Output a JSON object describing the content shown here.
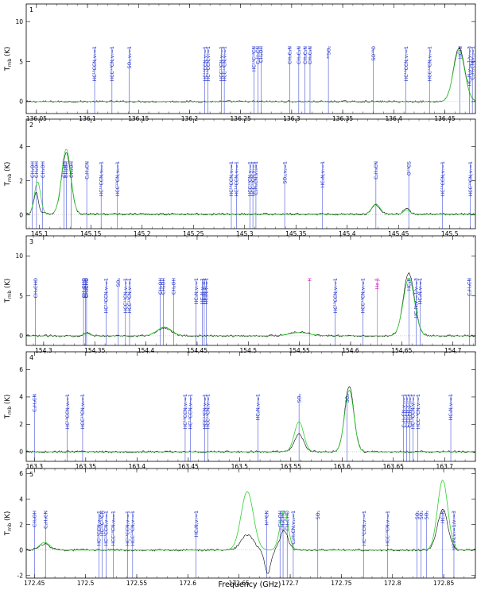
{
  "figure": {
    "xlabel": "Frequency (GHz)",
    "ylabel_text": "T",
    "ylabel_sub": "mb",
    "ylabel_unit": "(K)",
    "colors": {
      "observed": "#000000",
      "model": "#2fd12f",
      "line_blue": "#1f2fd0",
      "line_magenta": "#d020c8",
      "frame": "#000000"
    }
  },
  "chart_data": [
    {
      "type": "line",
      "panel": "1",
      "xlim": [
        136.04,
        136.48
      ],
      "ylim": [
        -1.5,
        12.2
      ],
      "xticks": [
        "136.05",
        "136.1",
        "136.15",
        "136.2",
        "136.25",
        "136.3",
        "136.35",
        "136.4",
        "136.45"
      ],
      "xtick_values": [
        136.05,
        136.1,
        136.15,
        136.2,
        136.25,
        136.3,
        136.35,
        136.4,
        136.45
      ],
      "yticks": [
        "0",
        "5",
        "10"
      ],
      "ytick_values": [
        0,
        5,
        10
      ],
      "baseline": 0,
      "noise": 0.12,
      "peaks": [
        {
          "x": 136.464,
          "amp": 6.7,
          "w": 0.0055,
          "model_amp": 6.4
        }
      ],
      "lines": [
        {
          "x": 136.107,
          "label": "HC¹³CCN,v₇=1",
          "color": "blue"
        },
        {
          "x": 136.124,
          "label": "HCC¹³CN,v₇=1",
          "color": "blue"
        },
        {
          "x": 136.141,
          "label": "SO₂,v₂=1",
          "color": "blue"
        },
        {
          "x": 136.215,
          "label": "HC¹³CCN,v₇=1",
          "color": "blue"
        },
        {
          "x": 136.218,
          "label": "HC¹³CCN,v₇=1",
          "color": "blue"
        },
        {
          "x": 136.231,
          "label": "HCC¹³CN,v₇=1",
          "color": "blue"
        },
        {
          "x": 136.234,
          "label": "HCC¹³CN,v₇=1",
          "color": "blue"
        },
        {
          "x": 136.263,
          "label": "HC¹³C¹³CN",
          "color": "blue"
        },
        {
          "x": 136.267,
          "label": "C₂H₅CN",
          "color": "blue"
        },
        {
          "x": 136.27,
          "label": "CH₃OH",
          "color": "blue"
        },
        {
          "x": 136.298,
          "label": "CH₃C₃N",
          "color": "blue"
        },
        {
          "x": 136.307,
          "label": "CH₃C₃N",
          "color": "blue"
        },
        {
          "x": 136.313,
          "label": "CH₃C₃N",
          "color": "blue"
        },
        {
          "x": 136.318,
          "label": "CH₃C₃N",
          "color": "blue"
        },
        {
          "x": 136.336,
          "label": "³⁴SO₂",
          "color": "blue"
        },
        {
          "x": 136.38,
          "label": "SO¹⁸O",
          "color": "blue"
        },
        {
          "x": 136.412,
          "label": "HC¹³CCN,v₇=1",
          "color": "blue"
        },
        {
          "x": 136.435,
          "label": "HCC¹³CN,v₇=1",
          "color": "blue"
        },
        {
          "x": 136.465,
          "label": "HC₃N",
          "color": "blue"
        },
        {
          "x": 136.474,
          "label": "HC₃N,v₇=1/v₇=3",
          "color": "blue"
        },
        {
          "x": 136.477,
          "label": "C₂H₅CN,v₁₃=1",
          "color": "blue"
        }
      ]
    },
    {
      "type": "line",
      "panel": "2",
      "xlim": [
        145.087,
        145.525
      ],
      "ylim": [
        -0.8,
        5.6
      ],
      "xticks": [
        "145.1",
        "145.15",
        "145.2",
        "145.25",
        "145.3",
        "145.35",
        "145.4",
        "145.45",
        "145.5"
      ],
      "xtick_values": [
        145.1,
        145.15,
        145.2,
        145.25,
        145.3,
        145.35,
        145.4,
        145.45,
        145.5
      ],
      "yticks": [
        "0",
        "2",
        "4"
      ],
      "ytick_values": [
        0,
        2,
        4
      ],
      "baseline": 0.05,
      "noise": 0.06,
      "peaks": [
        {
          "x": 145.098,
          "amp": 1.7,
          "w": 0.003,
          "model_amp": 1.9
        },
        {
          "x": 145.126,
          "amp": 3.6,
          "w": 0.0045,
          "model_amp": 3.8
        },
        {
          "x": 145.428,
          "amp": 0.55,
          "w": 0.004,
          "model_amp": 0.6
        },
        {
          "x": 145.458,
          "amp": 0.3,
          "w": 0.003,
          "model_amp": 0.25
        }
      ],
      "dips": [
        {
          "x": 145.1,
          "amp": 1.0,
          "w": 0.002
        }
      ],
      "lines": [
        {
          "x": 145.093,
          "label": "CH₃OH",
          "color": "blue"
        },
        {
          "x": 145.097,
          "label": "CH₃OH",
          "color": "blue"
        },
        {
          "x": 145.103,
          "label": "CH₃OH",
          "color": "blue"
        },
        {
          "x": 145.124,
          "label": "CH₃OH",
          "color": "blue"
        },
        {
          "x": 145.126,
          "label": "CH₃OH",
          "color": "blue"
        },
        {
          "x": 145.131,
          "label": "CH₃OH",
          "color": "blue"
        },
        {
          "x": 145.146,
          "label": "C₂H₃CN",
          "color": "blue"
        },
        {
          "x": 145.16,
          "label": "HC¹³CCN,v₆=1",
          "color": "blue"
        },
        {
          "x": 145.176,
          "label": "HCC¹³CN,v₆=1",
          "color": "blue"
        },
        {
          "x": 145.287,
          "label": "HC¹³CCN,v₇=1",
          "color": "blue"
        },
        {
          "x": 145.292,
          "label": "HC¹³CCN,v₇=1",
          "color": "blue"
        },
        {
          "x": 145.305,
          "label": "HCC¹³CN,v₇=1",
          "color": "blue"
        },
        {
          "x": 145.308,
          "label": "HCC¹³CN,v₇=1",
          "color": "blue"
        },
        {
          "x": 145.311,
          "label": "C₂H₅CN,v₁₃=1",
          "color": "blue"
        },
        {
          "x": 145.339,
          "label": "SO₂,v₂=1",
          "color": "blue"
        },
        {
          "x": 145.376,
          "label": "HC₃N,v₇=1",
          "color": "blue"
        },
        {
          "x": 145.428,
          "label": "C₂H₃CN",
          "color": "blue"
        },
        {
          "x": 145.46,
          "label": "O¹³CS",
          "color": "blue"
        },
        {
          "x": 145.493,
          "label": "HC¹³CCN,v₇=1",
          "color": "blue"
        },
        {
          "x": 145.52,
          "label": "HCC¹³CN,v₇=1",
          "color": "blue"
        }
      ]
    },
    {
      "type": "line",
      "panel": "3",
      "xlim": [
        154.283,
        154.722
      ],
      "ylim": [
        -1.2,
        12.5
      ],
      "xticks": [
        "154.3",
        "154.35",
        "154.4",
        "154.45",
        "154.5",
        "154.55",
        "154.6",
        "154.65",
        "154.7"
      ],
      "xtick_values": [
        154.3,
        154.35,
        154.4,
        154.45,
        154.5,
        154.55,
        154.6,
        154.65,
        154.7
      ],
      "yticks": [
        "0",
        "5",
        "10"
      ],
      "ytick_values": [
        0,
        5,
        10
      ],
      "baseline": 0,
      "noise": 0.12,
      "peaks": [
        {
          "x": 154.342,
          "amp": 0.35,
          "w": 0.003,
          "model_amp": 0.3
        },
        {
          "x": 154.418,
          "amp": 1.0,
          "w": 0.007,
          "model_amp": 1.1
        },
        {
          "x": 154.55,
          "amp": 0.5,
          "w": 0.01,
          "model_amp": 0.4
        },
        {
          "x": 154.657,
          "amp": 7.8,
          "w": 0.0055,
          "model_amp": 7.2
        }
      ],
      "lines": [
        {
          "x": 154.292,
          "label": "CH₃CHO",
          "color": "blue"
        },
        {
          "x": 154.339,
          "label": "CH₃CHO",
          "color": "blue"
        },
        {
          "x": 154.341,
          "label": "CH₃CHO",
          "color": "blue"
        },
        {
          "x": 154.342,
          "label": "CH₃CHO",
          "color": "blue"
        },
        {
          "x": 154.361,
          "label": "HC¹³CCN,v₇=1",
          "color": "blue"
        },
        {
          "x": 154.373,
          "label": "SO₂",
          "color": "blue"
        },
        {
          "x": 154.38,
          "label": "HCC¹³CN,v₇=1",
          "color": "blue"
        },
        {
          "x": 154.384,
          "label": "HCC¹³CN,v₇=1",
          "color": "blue"
        },
        {
          "x": 154.414,
          "label": "CH₃OH",
          "color": "blue"
        },
        {
          "x": 154.417,
          "label": "CH₃OH",
          "color": "blue"
        },
        {
          "x": 154.427,
          "label": "CH₃OH",
          "color": "blue"
        },
        {
          "x": 154.449,
          "label": "HC₃N,v₇=1",
          "color": "blue"
        },
        {
          "x": 154.455,
          "label": "HC₃N,v₇=1",
          "color": "blue"
        },
        {
          "x": 154.457,
          "label": "HC₃N,v₇=1",
          "color": "blue"
        },
        {
          "x": 154.459,
          "label": "HC₃N,v₇=1",
          "color": "blue"
        },
        {
          "x": 154.56,
          "label": "H",
          "color": "magenta"
        },
        {
          "x": 154.585,
          "label": "HC¹³CCN,v₇=1",
          "color": "blue"
        },
        {
          "x": 154.612,
          "label": "HCC¹³CN,v₇=1",
          "color": "blue"
        },
        {
          "x": 154.626,
          "label": "He β",
          "color": "magenta"
        },
        {
          "x": 154.657,
          "label": "HC₃N",
          "color": "blue"
        },
        {
          "x": 154.664,
          "label": "HC₃N,v₇=1/v₇=3",
          "color": "blue"
        },
        {
          "x": 154.668,
          "label": "HC₃N,v₇=1",
          "color": "blue"
        },
        {
          "x": 154.716,
          "label": "C₂H₃CN",
          "color": "blue"
        }
      ]
    },
    {
      "type": "line",
      "panel": "4",
      "xlim": [
        163.292,
        163.73
      ],
      "ylim": [
        -0.7,
        7.3
      ],
      "xticks": [
        "163.3",
        "163.35",
        "163.4",
        "163.45",
        "163.5",
        "163.55",
        "163.6",
        "163.65",
        "163.7"
      ],
      "xtick_values": [
        163.3,
        163.35,
        163.4,
        163.45,
        163.5,
        163.55,
        163.6,
        163.65,
        163.7
      ],
      "yticks": [
        "0",
        "2",
        "4",
        "6"
      ],
      "ytick_values": [
        0,
        2,
        4,
        6
      ],
      "baseline": 0,
      "noise": 0.07,
      "peaks": [
        {
          "x": 163.558,
          "amp": 1.3,
          "w": 0.0045,
          "model_amp": 2.2
        },
        {
          "x": 163.607,
          "amp": 4.8,
          "w": 0.0045,
          "model_amp": 4.5
        }
      ],
      "lines": [
        {
          "x": 163.3,
          "label": "C₂H₃CN",
          "color": "blue"
        },
        {
          "x": 163.332,
          "label": "HC¹³CCN,v₆=1",
          "color": "blue"
        },
        {
          "x": 163.347,
          "label": "HCC¹³CN,v₆=1",
          "color": "blue"
        },
        {
          "x": 163.447,
          "label": "HC¹³CCN,v₇=1",
          "color": "blue"
        },
        {
          "x": 163.452,
          "label": "HC¹³CCN,v₇=1",
          "color": "blue"
        },
        {
          "x": 163.466,
          "label": "HCC¹³CN,v₇=1",
          "color": "blue"
        },
        {
          "x": 163.469,
          "label": "HCC¹³CN,v₇=1",
          "color": "blue"
        },
        {
          "x": 163.518,
          "label": "HC₃N,v₇=1",
          "color": "blue"
        },
        {
          "x": 163.558,
          "label": "SO₂",
          "color": "blue"
        },
        {
          "x": 163.605,
          "label": "SO₂",
          "color": "blue"
        },
        {
          "x": 163.66,
          "label": "C₂H₅CN,v₁₃=1",
          "color": "blue"
        },
        {
          "x": 163.663,
          "label": "C₂H₅CN,v₁₃=1",
          "color": "blue"
        },
        {
          "x": 163.666,
          "label": "C₂H₅CN,v₁₃=1",
          "color": "blue"
        },
        {
          "x": 163.669,
          "label": "HC¹³CCN,v₇=1",
          "color": "blue"
        },
        {
          "x": 163.674,
          "label": "HCC¹³CN,v₇=1",
          "color": "blue"
        },
        {
          "x": 163.706,
          "label": "HC₃N,v₇=1",
          "color": "blue"
        }
      ]
    },
    {
      "type": "line",
      "panel": "5",
      "xlim": [
        172.442,
        172.881
      ],
      "ylim": [
        -2.2,
        6.4
      ],
      "xticks": [
        "172.45",
        "172.5",
        "172.55",
        "172.6",
        "172.65",
        "172.7",
        "172.75",
        "172.8",
        "172.85"
      ],
      "xtick_values": [
        172.45,
        172.5,
        172.55,
        172.6,
        172.65,
        172.7,
        172.75,
        172.8,
        172.85
      ],
      "yticks": [
        "-2",
        "0",
        "2",
        "4",
        "6"
      ],
      "ytick_values": [
        -2,
        0,
        2,
        4,
        6
      ],
      "baseline": 0,
      "noise": 0.08,
      "peaks": [
        {
          "x": 172.658,
          "amp": 1.2,
          "w": 0.006,
          "model_amp": 4.6
        },
        {
          "x": 172.694,
          "amp": 1.5,
          "w": 0.004,
          "model_amp": 3.1
        },
        {
          "x": 172.849,
          "amp": 3.2,
          "w": 0.005,
          "model_amp": 5.5
        },
        {
          "x": 172.46,
          "amp": 0.5,
          "w": 0.005,
          "model_amp": 0.6
        }
      ],
      "dips": [
        {
          "x": 172.678,
          "amp": 1.8,
          "w": 0.003
        }
      ],
      "lines": [
        {
          "x": 172.45,
          "label": "CH₃OH",
          "color": "blue"
        },
        {
          "x": 172.461,
          "label": "C₂H₃CN",
          "color": "blue"
        },
        {
          "x": 172.513,
          "label": "HC¹³CCN,v₆=1",
          "color": "blue"
        },
        {
          "x": 172.516,
          "label": "HC¹³C¹³CN",
          "color": "blue"
        },
        {
          "x": 172.52,
          "label": "HC¹³CCN,v₇=1",
          "color": "blue"
        },
        {
          "x": 172.527,
          "label": "HCC¹³CN,v₆=1",
          "color": "blue"
        },
        {
          "x": 172.541,
          "label": "HC¹³CCN,v₇=1",
          "color": "blue"
        },
        {
          "x": 172.546,
          "label": "HCC¹³CN,v₇=1",
          "color": "blue"
        },
        {
          "x": 172.608,
          "label": "HC₃N,v₇=1",
          "color": "blue"
        },
        {
          "x": 172.677,
          "label": "H¹³CN",
          "color": "blue"
        },
        {
          "x": 172.69,
          "label": "CH₃OH",
          "color": "blue"
        },
        {
          "x": 172.693,
          "label": "CH₃CHO",
          "color": "blue"
        },
        {
          "x": 172.697,
          "label": "CH₃CHO",
          "color": "blue"
        },
        {
          "x": 172.703,
          "label": "C₂H₅CN,v₁₃=1",
          "color": "blue"
        },
        {
          "x": 172.727,
          "label": "SO₂",
          "color": "blue"
        },
        {
          "x": 172.772,
          "label": "HC¹³CCN,v₇=1",
          "color": "blue"
        },
        {
          "x": 172.795,
          "label": "HCC¹³CN,v₇=1",
          "color": "blue"
        },
        {
          "x": 172.824,
          "label": "SO₂",
          "color": "blue"
        },
        {
          "x": 172.828,
          "label": "SO₂",
          "color": "blue"
        },
        {
          "x": 172.833,
          "label": "SO₂",
          "color": "blue"
        },
        {
          "x": 172.849,
          "label": "HC₃N",
          "color": "blue"
        },
        {
          "x": 172.86,
          "label": "HC₃N,v₇=1/v₇=3",
          "color": "blue"
        }
      ]
    }
  ]
}
